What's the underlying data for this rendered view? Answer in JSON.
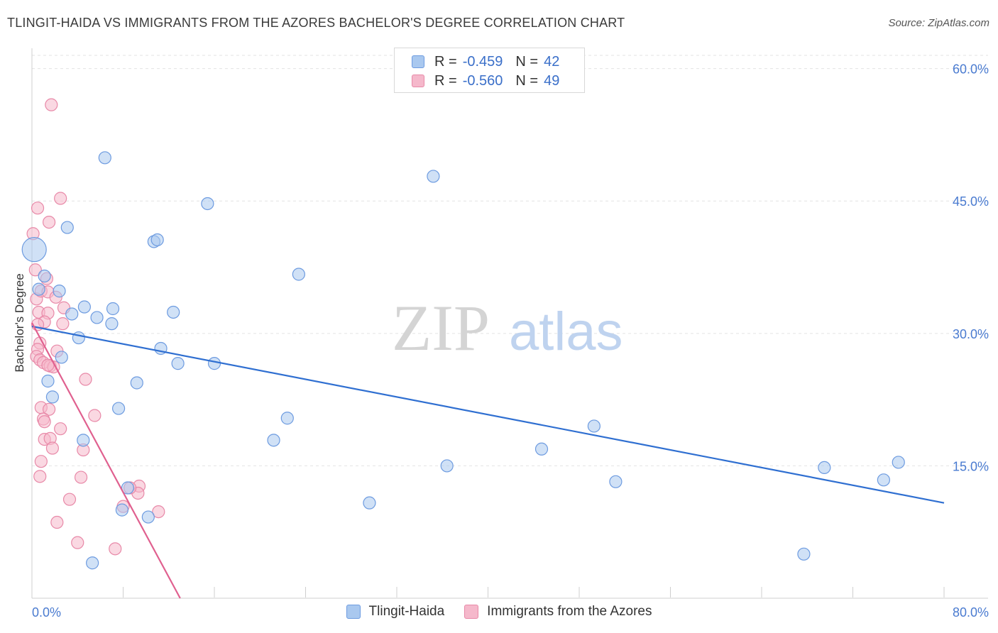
{
  "title": "TLINGIT-HAIDA VS IMMIGRANTS FROM THE AZORES BACHELOR'S DEGREE CORRELATION CHART",
  "source": "Source: ZipAtlas.com",
  "watermark": {
    "zip": "ZIP",
    "atlas": "atlas"
  },
  "colors": {
    "blue_fill": "#a9c8ef",
    "blue_stroke": "#6d9be0",
    "blue_line": "#2f6fd1",
    "pink_fill": "#f5b8cb",
    "pink_stroke": "#e889a8",
    "pink_line": "#e0608f",
    "tick_label": "#4a7bd0",
    "grid": "#e3e3e3"
  },
  "legend_top": [
    {
      "r_label": "R =",
      "r_value": "-0.459",
      "n_label": "N =",
      "n_value": "42"
    },
    {
      "r_label": "R =",
      "r_value": "-0.560",
      "n_label": "N =",
      "n_value": "49"
    }
  ],
  "chart_data": {
    "type": "scatter",
    "title": "TLINGIT-HAIDA VS IMMIGRANTS FROM THE AZORES BACHELOR'S DEGREE CORRELATION CHART",
    "xlabel": "",
    "ylabel": "Bachelor's Degree",
    "xlim": [
      0,
      80
    ],
    "ylim": [
      0,
      61.5
    ],
    "x_tick_labels": [
      "0.0%",
      "80.0%"
    ],
    "y_ticks": [
      15,
      30,
      45,
      60
    ],
    "y_tick_labels": [
      "15.0%",
      "30.0%",
      "45.0%",
      "60.0%"
    ],
    "x_minor_ticks": [
      0,
      8,
      16,
      24,
      32,
      40,
      48,
      56,
      64,
      72,
      80
    ],
    "grid": true,
    "legend_position": "bottom-center",
    "series": [
      {
        "name": "Tlingit-Haida",
        "color": "blue",
        "points": [
          [
            0.2,
            39.5
          ],
          [
            1.1,
            36.5
          ],
          [
            0.6,
            35.0
          ],
          [
            2.4,
            34.8
          ],
          [
            4.6,
            33.0
          ],
          [
            3.5,
            32.2
          ],
          [
            5.7,
            31.8
          ],
          [
            7.1,
            32.8
          ],
          [
            12.4,
            32.4
          ],
          [
            7.0,
            31.1
          ],
          [
            4.1,
            29.5
          ],
          [
            2.6,
            27.3
          ],
          [
            1.4,
            24.6
          ],
          [
            1.8,
            22.8
          ],
          [
            9.2,
            24.4
          ],
          [
            11.3,
            28.3
          ],
          [
            12.8,
            26.6
          ],
          [
            16.0,
            26.6
          ],
          [
            6.4,
            49.9
          ],
          [
            15.4,
            44.7
          ],
          [
            3.1,
            42.0
          ],
          [
            10.7,
            40.4
          ],
          [
            11.0,
            40.6
          ],
          [
            23.4,
            36.7
          ],
          [
            35.2,
            47.8
          ],
          [
            22.4,
            20.4
          ],
          [
            7.6,
            21.5
          ],
          [
            21.2,
            17.9
          ],
          [
            4.5,
            17.9
          ],
          [
            49.3,
            19.5
          ],
          [
            8.4,
            12.5
          ],
          [
            7.9,
            10.0
          ],
          [
            10.2,
            9.2
          ],
          [
            29.6,
            10.8
          ],
          [
            36.4,
            15.0
          ],
          [
            44.7,
            16.9
          ],
          [
            51.2,
            13.2
          ],
          [
            69.5,
            14.8
          ],
          [
            74.7,
            13.4
          ],
          [
            76.0,
            15.4
          ],
          [
            67.7,
            5.0
          ],
          [
            5.3,
            4.0
          ]
        ],
        "trend": {
          "x0": 0.0,
          "y0": 30.8,
          "x1": 80.0,
          "y1": 10.8
        }
      },
      {
        "name": "Immigrants from the Azores",
        "color": "pink",
        "points": [
          [
            1.7,
            55.9
          ],
          [
            2.5,
            45.3
          ],
          [
            0.5,
            44.2
          ],
          [
            1.5,
            42.6
          ],
          [
            0.1,
            41.3
          ],
          [
            0.3,
            37.2
          ],
          [
            1.3,
            36.2
          ],
          [
            0.4,
            33.9
          ],
          [
            0.8,
            34.8
          ],
          [
            1.4,
            34.7
          ],
          [
            2.1,
            34.1
          ],
          [
            2.8,
            32.9
          ],
          [
            0.6,
            32.4
          ],
          [
            1.4,
            32.3
          ],
          [
            1.1,
            31.3
          ],
          [
            2.7,
            31.1
          ],
          [
            0.5,
            31.0
          ],
          [
            0.7,
            28.9
          ],
          [
            0.5,
            28.2
          ],
          [
            2.2,
            28.0
          ],
          [
            0.4,
            27.4
          ],
          [
            0.7,
            27.0
          ],
          [
            1.0,
            26.7
          ],
          [
            1.6,
            26.3
          ],
          [
            1.9,
            26.2
          ],
          [
            1.4,
            26.4
          ],
          [
            4.7,
            24.8
          ],
          [
            0.8,
            21.6
          ],
          [
            1.5,
            21.4
          ],
          [
            5.5,
            20.7
          ],
          [
            1.0,
            20.3
          ],
          [
            1.1,
            20.0
          ],
          [
            2.5,
            19.2
          ],
          [
            1.1,
            18.0
          ],
          [
            1.6,
            18.1
          ],
          [
            1.8,
            17.0
          ],
          [
            4.5,
            16.8
          ],
          [
            0.8,
            15.5
          ],
          [
            0.7,
            13.8
          ],
          [
            4.3,
            13.7
          ],
          [
            9.4,
            12.7
          ],
          [
            9.3,
            11.9
          ],
          [
            3.3,
            11.2
          ],
          [
            11.1,
            9.8
          ],
          [
            8.0,
            10.4
          ],
          [
            2.2,
            8.6
          ],
          [
            4.0,
            6.3
          ],
          [
            7.3,
            5.6
          ],
          [
            8.6,
            12.5
          ]
        ],
        "trend": {
          "x0": 0.0,
          "y0": 31.2,
          "x1": 13.0,
          "y1": 0.0
        }
      }
    ]
  },
  "legend_bottom": [
    {
      "label": "Tlingit-Haida"
    },
    {
      "label": "Immigrants from the Azores"
    }
  ]
}
